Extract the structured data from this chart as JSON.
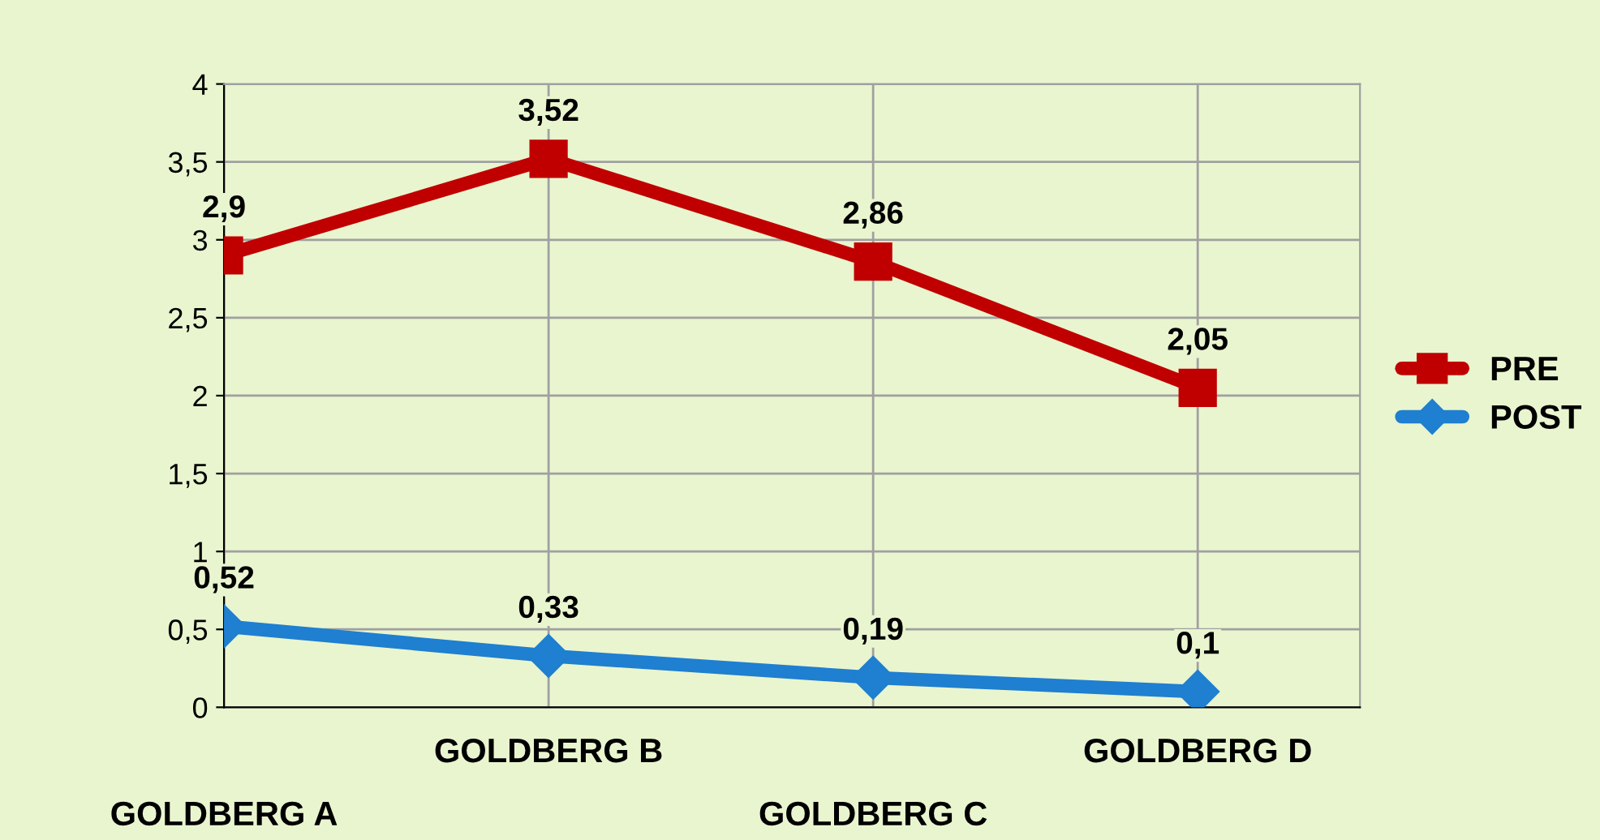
{
  "chart_data": {
    "type": "line",
    "categories": [
      "GOLDBERG A",
      "GOLDBERG B",
      "GOLDBERG C",
      "GOLDBERG D"
    ],
    "series": [
      {
        "name": "PRE",
        "color": "#c00000",
        "marker": "square",
        "values": [
          2.9,
          3.52,
          2.86,
          2.05
        ],
        "value_labels": [
          "2,9",
          "3,52",
          "2,86",
          "2,05"
        ]
      },
      {
        "name": "POST",
        "color": "#1f7fd0",
        "marker": "diamond",
        "values": [
          0.52,
          0.33,
          0.19,
          0.1
        ],
        "value_labels": [
          "0,52",
          "0,33",
          "0,19",
          "0,1"
        ]
      }
    ],
    "ylim": [
      0,
      4
    ],
    "yticks": [
      0,
      {
        "value": 0.5,
        "label": "0,5"
      },
      1,
      {
        "value": 1.5,
        "label": "1,5"
      },
      2,
      {
        "value": 2.5,
        "label": "2,5"
      },
      3,
      {
        "value": 3.5,
        "label": "3,5"
      },
      4
    ],
    "grid": true,
    "legend": "right",
    "line_style": "solid"
  }
}
